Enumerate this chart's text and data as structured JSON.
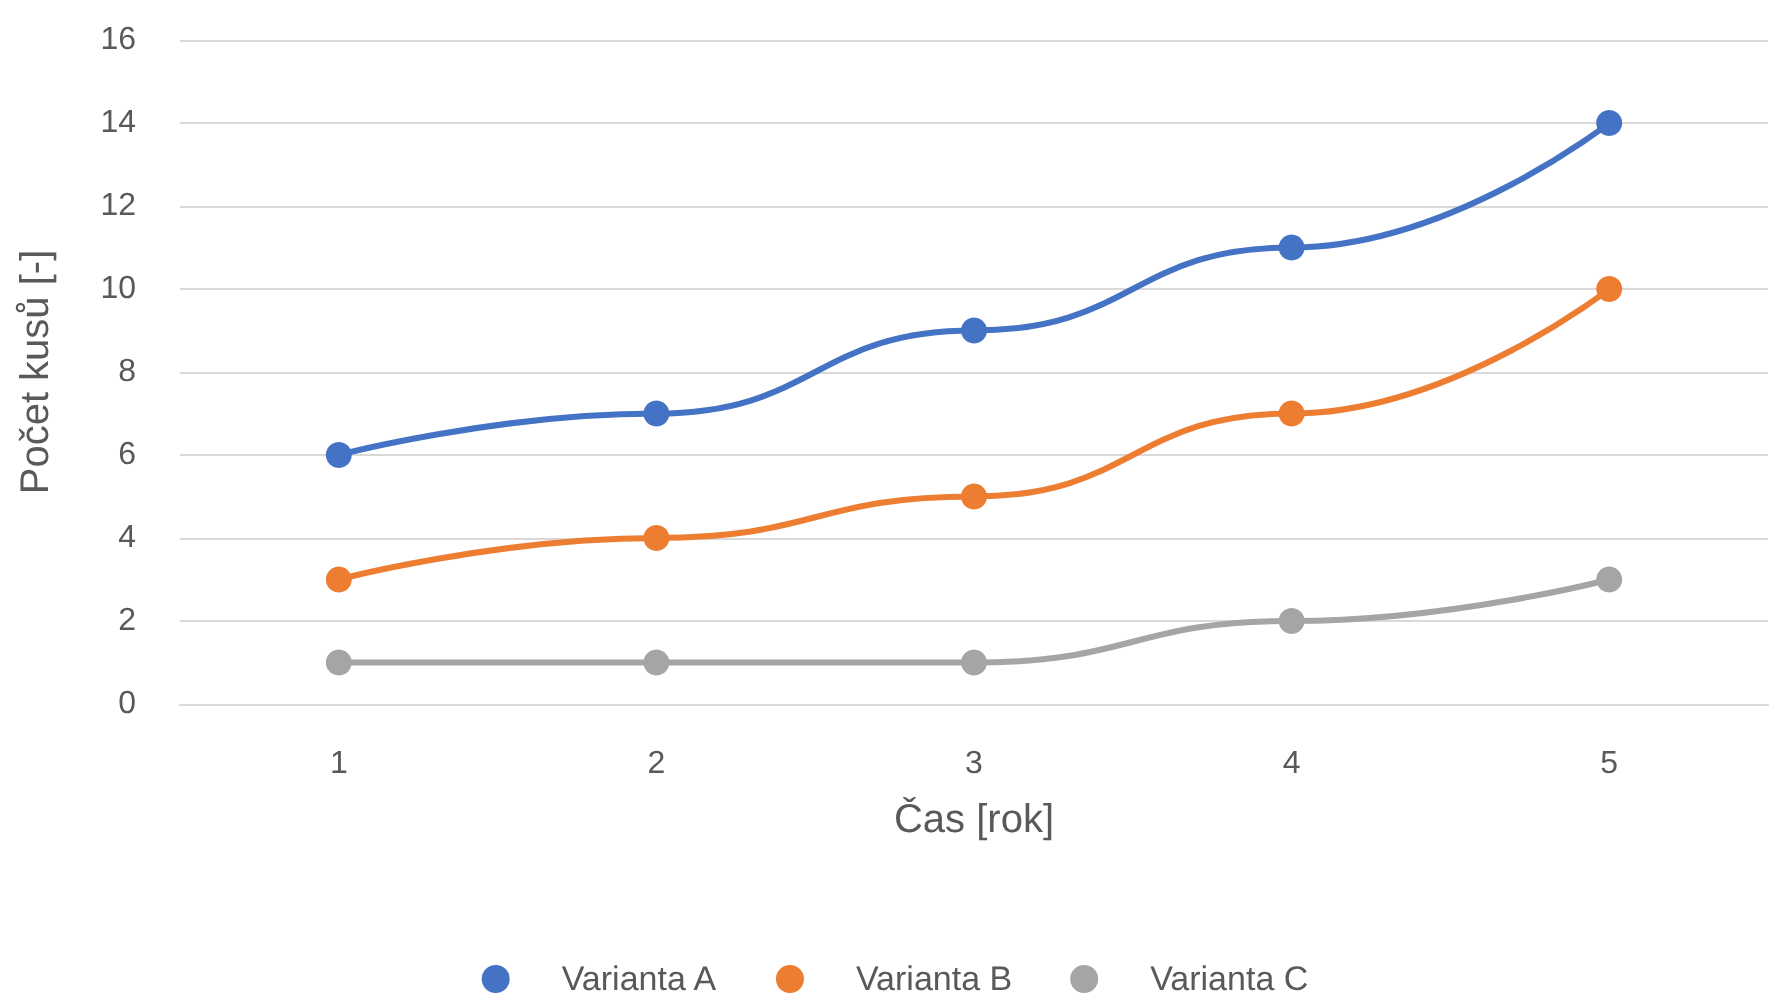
{
  "chart_data": {
    "type": "line",
    "xlabel": "Čas [rok]",
    "ylabel": "Počet kusů [-]",
    "categories": [
      "1",
      "2",
      "3",
      "4",
      "5"
    ],
    "series": [
      {
        "name": "Varianta A",
        "color": "#4472c4",
        "values": [
          6,
          7,
          9,
          11,
          14
        ]
      },
      {
        "name": "Varianta B",
        "color": "#ed7d31",
        "values": [
          3,
          4,
          5,
          7,
          10
        ]
      },
      {
        "name": "Varianta C",
        "color": "#a5a5a5",
        "values": [
          1,
          1,
          1,
          2,
          3
        ]
      }
    ],
    "ylim": [
      0,
      16
    ],
    "yticks": [
      0,
      2,
      4,
      6,
      8,
      10,
      12,
      14,
      16
    ],
    "grid": "y",
    "legend": "bottom",
    "marker": "circle",
    "line_style": "solid"
  }
}
